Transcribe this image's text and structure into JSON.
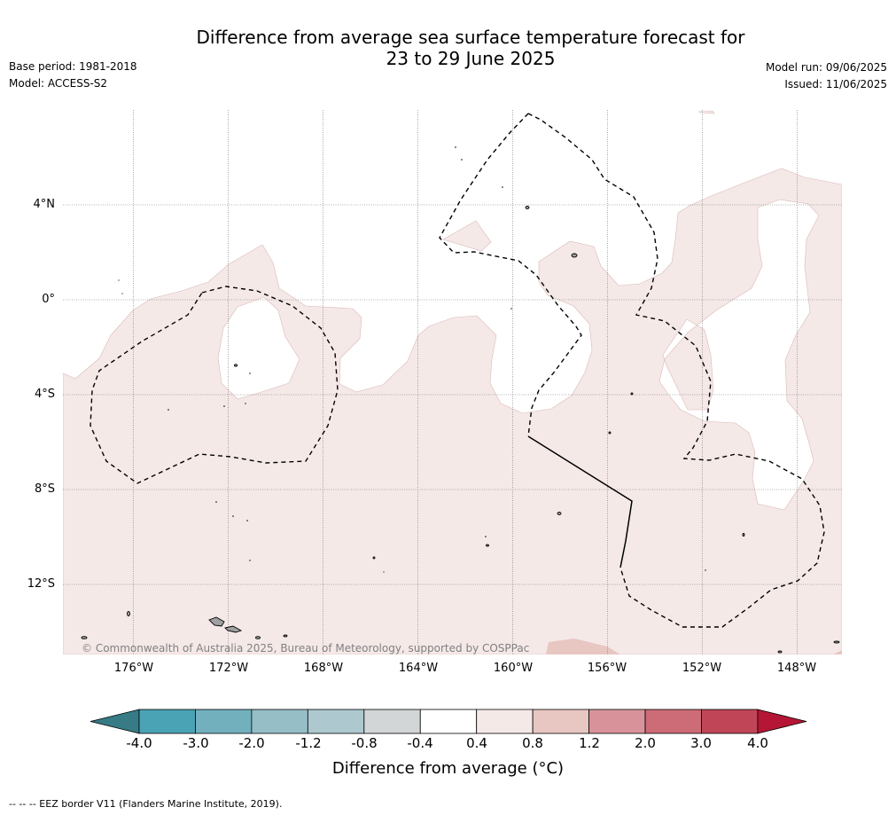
{
  "header": {
    "title_line1": "Difference from average sea surface temperature forecast for",
    "title_line2": "23 to 29 June 2025",
    "base_period": "Base period: 1981-2018",
    "model": "Model: ACCESS-S2",
    "model_run": "Model run: 09/06/2025",
    "issued": "Issued: 11/06/2025"
  },
  "map": {
    "projection": "plate-carree",
    "lon_range": [
      -179,
      -146.2
    ],
    "lat_range": [
      -14.95,
      7.95
    ],
    "lat_labels": [
      "4°N",
      "0°",
      "4°S",
      "8°S",
      "12°S"
    ],
    "lon_labels": [
      "176°W",
      "172°W",
      "168°W",
      "164°W",
      "160°W",
      "156°W",
      "152°W",
      "148°W"
    ],
    "fill_colors": {
      "band_0.4_0.8": "#f5e9e8",
      "band_0.8_1.2": "#e8c6c2",
      "land": "#a0a0a0"
    },
    "copyright": "© Commonwealth of Australia 2025, Bureau of Meteorology, supported by COSPPac"
  },
  "colorbar": {
    "ticks": [
      "-4.0",
      "-3.0",
      "-2.0",
      "-1.2",
      "-0.8",
      "-0.4",
      "0.4",
      "0.8",
      "1.2",
      "2.0",
      "3.0",
      "4.0"
    ],
    "colors": [
      "#367b86",
      "#4aa3b4",
      "#72b0be",
      "#95bec7",
      "#adc9cf",
      "#d3d6d6",
      "#ffffff",
      "#f5e9e8",
      "#e8c6c2",
      "#d8939a",
      "#cd6b77",
      "#c04657",
      "#b51635"
    ],
    "label": "Difference from average (°C)"
  },
  "footnote": "--  --  -- EEZ border V11 (Flanders Marine Institute, 2019)."
}
